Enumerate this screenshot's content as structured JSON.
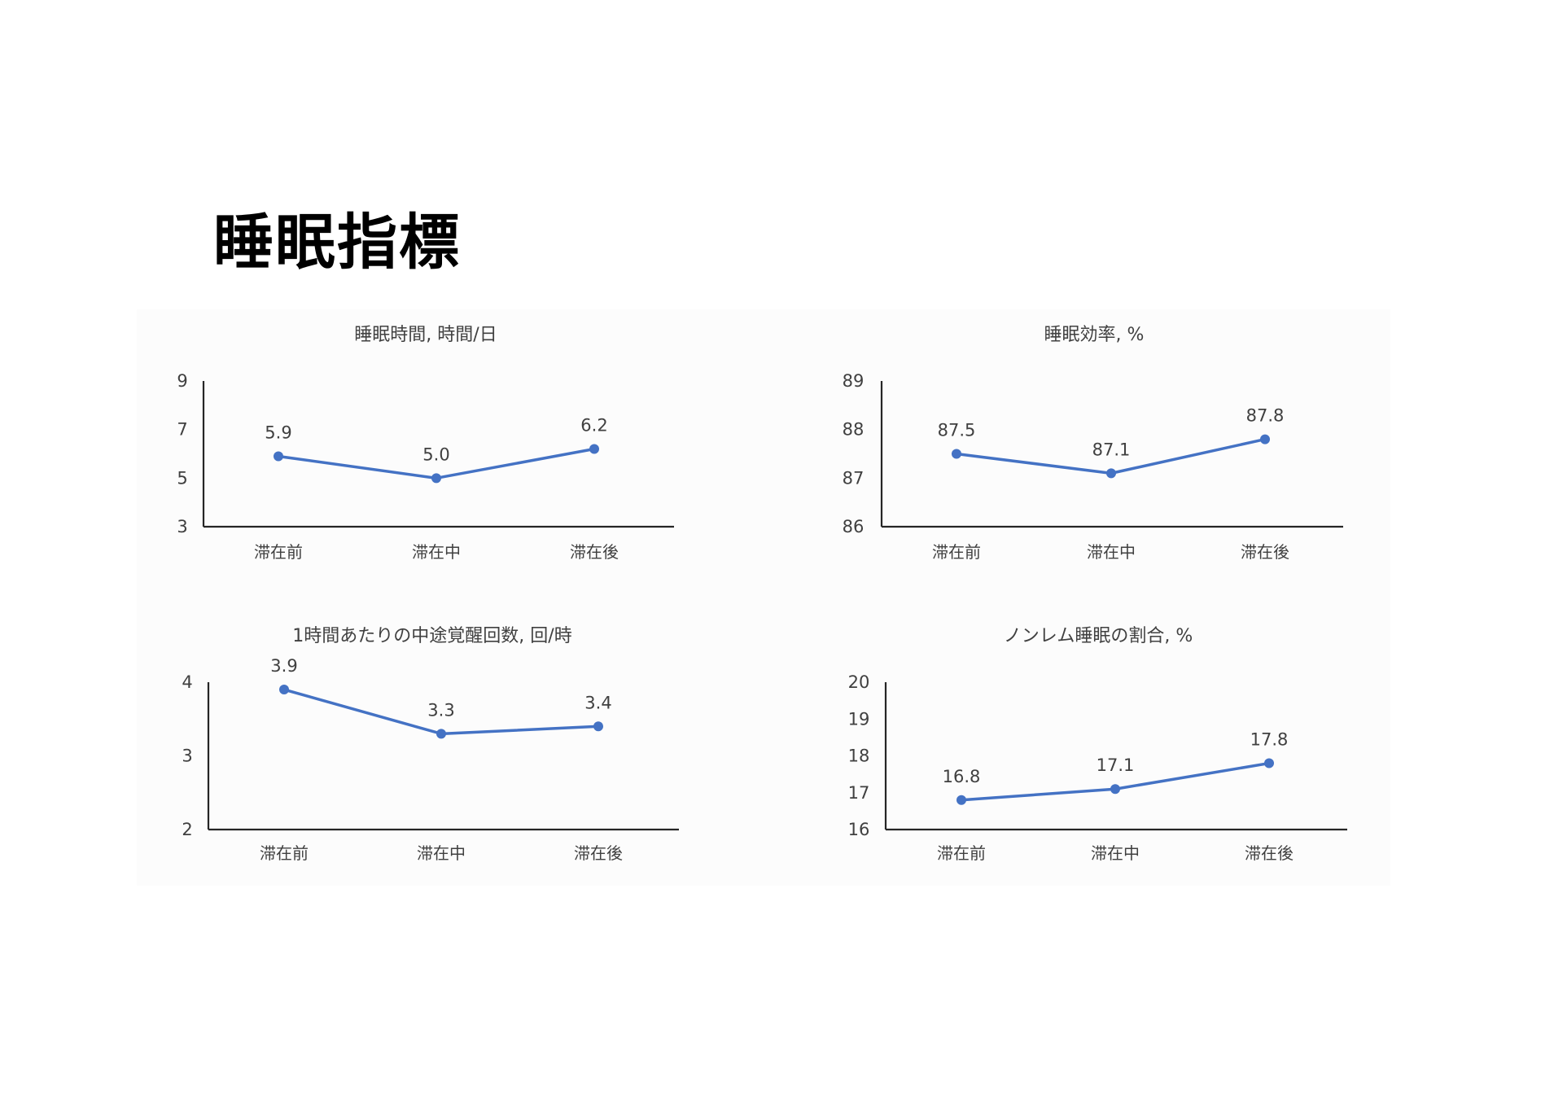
{
  "page": {
    "title": "睡眠指標"
  },
  "colors": {
    "series": "#4472C4",
    "axis": "#262626",
    "text": "#404040"
  },
  "chart_data": [
    {
      "type": "line",
      "title": "睡眠時間, 時間/日",
      "categories": [
        "滞在前",
        "滞在中",
        "滞在後"
      ],
      "values": [
        5.9,
        5.0,
        6.2
      ],
      "value_labels": [
        "5.9",
        "5.0",
        "6.2"
      ],
      "ylim": [
        3,
        9
      ],
      "yticks": [
        "3",
        "5",
        "7",
        "9"
      ],
      "grid": false
    },
    {
      "type": "line",
      "title": "睡眠効率, %",
      "categories": [
        "滞在前",
        "滞在中",
        "滞在後"
      ],
      "values": [
        87.5,
        87.1,
        87.8
      ],
      "value_labels": [
        "87.5",
        "87.1",
        "87.8"
      ],
      "ylim": [
        86,
        89
      ],
      "yticks": [
        "86",
        "87",
        "88",
        "89"
      ],
      "grid": false
    },
    {
      "type": "line",
      "title": "1時間あたりの中途覚醒回数, 回/時",
      "categories": [
        "滞在前",
        "滞在中",
        "滞在後"
      ],
      "values": [
        3.9,
        3.3,
        3.4
      ],
      "value_labels": [
        "3.9",
        "3.3",
        "3.4"
      ],
      "ylim": [
        2,
        4
      ],
      "yticks": [
        "2",
        "3",
        "4"
      ],
      "grid": false
    },
    {
      "type": "line",
      "title": "ノンレム睡眠の割合, %",
      "categories": [
        "滞在前",
        "滞在中",
        "滞在後"
      ],
      "values": [
        16.8,
        17.1,
        17.8
      ],
      "value_labels": [
        "16.8",
        "17.1",
        "17.8"
      ],
      "ylim": [
        16,
        20
      ],
      "yticks": [
        "16",
        "17",
        "18",
        "19",
        "20"
      ],
      "grid": false
    }
  ]
}
